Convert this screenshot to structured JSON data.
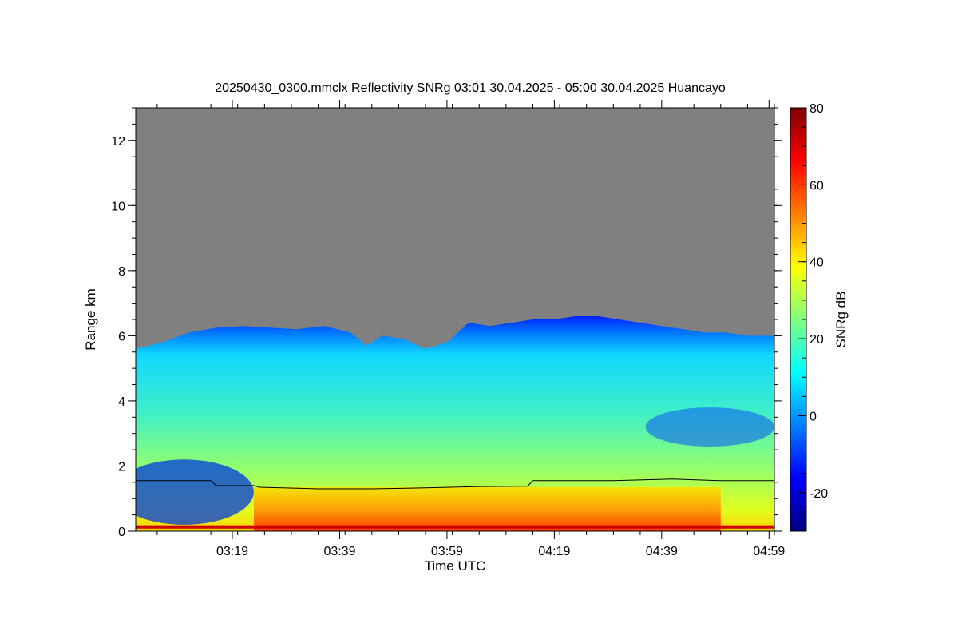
{
  "chart_data": {
    "type": "heatmap",
    "title": "20250430_0300.mmclx Reflectivity SNRg   03:01 30.04.2025 - 05:00 30.04.2025 Huancayo",
    "xlabel": "Time UTC",
    "ylabel": "Range km",
    "colorbar_label": "SNRg dB",
    "x_ticks": [
      "03:19",
      "03:39",
      "03:59",
      "04:19",
      "04:39",
      "04:59"
    ],
    "x_tick_minutes": [
      199,
      219,
      239,
      259,
      279,
      299
    ],
    "x_range_minutes": [
      181,
      300
    ],
    "y_ticks": [
      "0",
      "2",
      "4",
      "6",
      "8",
      "10",
      "12"
    ],
    "y_tick_values": [
      0,
      2,
      4,
      6,
      8,
      10,
      12
    ],
    "ylim": [
      0,
      13
    ],
    "colorbar_ticks": [
      "-20",
      "0",
      "20",
      "40",
      "60",
      "80"
    ],
    "colorbar_tick_values": [
      -20,
      0,
      20,
      40,
      60,
      80
    ],
    "colorbar_range": [
      -30,
      80
    ],
    "colormap": [
      "#00007f",
      "#0000ff",
      "#007fff",
      "#00ffff",
      "#7fff7f",
      "#ffff00",
      "#ff7f00",
      "#ff0000",
      "#7f0000"
    ],
    "no_signal_color": "#808080",
    "cloud_top_km": [
      [
        181,
        5.6
      ],
      [
        186,
        5.8
      ],
      [
        191,
        6.1
      ],
      [
        196,
        6.25
      ],
      [
        201,
        6.3
      ],
      [
        206,
        6.25
      ],
      [
        211,
        6.2
      ],
      [
        216,
        6.3
      ],
      [
        221,
        6.1
      ],
      [
        224,
        5.7
      ],
      [
        227,
        6.0
      ],
      [
        231,
        5.9
      ],
      [
        235,
        5.6
      ],
      [
        239,
        5.8
      ],
      [
        243,
        6.4
      ],
      [
        247,
        6.3
      ],
      [
        251,
        6.4
      ],
      [
        255,
        6.5
      ],
      [
        259,
        6.5
      ],
      [
        263,
        6.6
      ],
      [
        267,
        6.6
      ],
      [
        271,
        6.5
      ],
      [
        275,
        6.4
      ],
      [
        279,
        6.3
      ],
      [
        283,
        6.2
      ],
      [
        287,
        6.1
      ],
      [
        291,
        6.1
      ],
      [
        295,
        6.0
      ],
      [
        300,
        6.0
      ]
    ],
    "cloud_base_km": [
      [
        181,
        1.55
      ],
      [
        195,
        1.55
      ],
      [
        196,
        1.4
      ],
      [
        203,
        1.4
      ],
      [
        204,
        1.35
      ],
      [
        215,
        1.3
      ],
      [
        225,
        1.3
      ],
      [
        235,
        1.33
      ],
      [
        245,
        1.37
      ],
      [
        254,
        1.38
      ],
      [
        255,
        1.55
      ],
      [
        270,
        1.55
      ],
      [
        281,
        1.6
      ],
      [
        290,
        1.55
      ],
      [
        300,
        1.55
      ]
    ]
  }
}
